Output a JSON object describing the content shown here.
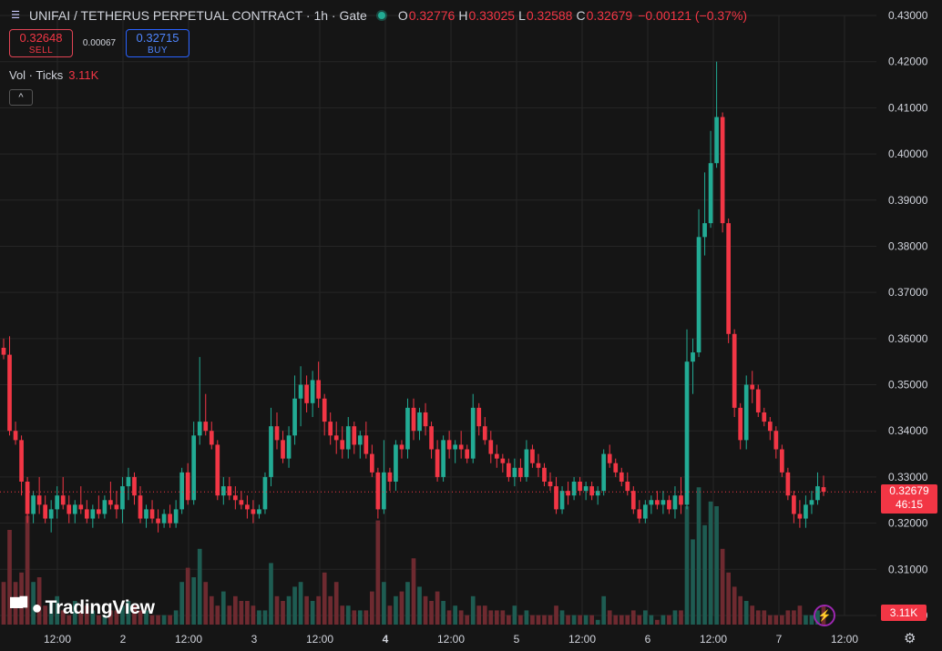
{
  "header": {
    "symbol_title": "UNIFAI / TETHERUS PERPETUAL CONTRACT · 1h · Gate",
    "o_label": "O",
    "o_value": "0.32776",
    "h_label": "H",
    "h_value": "0.33025",
    "l_label": "L",
    "l_value": "0.32588",
    "c_label": "C",
    "c_value": "0.32679",
    "change": "−0.00121 (−0.37%)",
    "status_color": "#22ab94"
  },
  "trade": {
    "sell_price": "0.32648",
    "sell_label": "SELL",
    "spread": "0.00067",
    "buy_price": "0.32715",
    "buy_label": "BUY"
  },
  "volume_legend": {
    "label": "Vol · Ticks",
    "value": "3.11K"
  },
  "collapse_label": "^",
  "brand": "TradingView",
  "last_price_tag": {
    "price": "0.32679",
    "countdown": "46:15"
  },
  "volume_tag": "3.11K",
  "colors": {
    "up": "#22ab94",
    "down": "#f23645",
    "background": "#151515",
    "grid": "#262626",
    "up_volume": "#1e5c52",
    "down_volume": "#6e2a30"
  },
  "chart_data": {
    "type": "candlestick",
    "y_ticks": [
      "0.43000",
      "0.42000",
      "0.41000",
      "0.40000",
      "0.39000",
      "0.38000",
      "0.37000",
      "0.36000",
      "0.35000",
      "0.34000",
      "0.33000",
      "0.32000",
      "0.31000",
      "0.30000"
    ],
    "ylim": [
      0.3,
      0.431
    ],
    "x_ticks": [
      "12:00",
      "2",
      "12:00",
      "3",
      "12:00",
      "4",
      "12:00",
      "5",
      "12:00",
      "6",
      "12:00",
      "7",
      "12:00"
    ],
    "x_ticks_bold": [
      false,
      false,
      false,
      false,
      false,
      true,
      false,
      false,
      false,
      false,
      false,
      false,
      false
    ],
    "last_price": 0.32679,
    "candles": [
      [
        0.358,
        0.36,
        0.3555,
        0.3565
      ],
      [
        0.3565,
        0.3605,
        0.339,
        0.34
      ],
      [
        0.34,
        0.342,
        0.337,
        0.338
      ],
      [
        0.338,
        0.339,
        0.326,
        0.329
      ],
      [
        0.329,
        0.33,
        0.32,
        0.322
      ],
      [
        0.322,
        0.327,
        0.32,
        0.326
      ],
      [
        0.326,
        0.33,
        0.322,
        0.324
      ],
      [
        0.324,
        0.326,
        0.32,
        0.321
      ],
      [
        0.321,
        0.325,
        0.318,
        0.323
      ],
      [
        0.323,
        0.328,
        0.321,
        0.326
      ],
      [
        0.326,
        0.33,
        0.323,
        0.324
      ],
      [
        0.324,
        0.326,
        0.32,
        0.322
      ],
      [
        0.322,
        0.325,
        0.32,
        0.324
      ],
      [
        0.324,
        0.328,
        0.322,
        0.323
      ],
      [
        0.323,
        0.325,
        0.32,
        0.321
      ],
      [
        0.321,
        0.324,
        0.319,
        0.323
      ],
      [
        0.323,
        0.326,
        0.321,
        0.322
      ],
      [
        0.322,
        0.326,
        0.321,
        0.325
      ],
      [
        0.325,
        0.329,
        0.323,
        0.324
      ],
      [
        0.324,
        0.327,
        0.321,
        0.323
      ],
      [
        0.323,
        0.33,
        0.32,
        0.328
      ],
      [
        0.328,
        0.332,
        0.325,
        0.33
      ],
      [
        0.33,
        0.331,
        0.324,
        0.326
      ],
      [
        0.326,
        0.328,
        0.32,
        0.321
      ],
      [
        0.321,
        0.324,
        0.319,
        0.323
      ],
      [
        0.323,
        0.325,
        0.32,
        0.321
      ],
      [
        0.321,
        0.323,
        0.318,
        0.32
      ],
      [
        0.32,
        0.323,
        0.319,
        0.322
      ],
      [
        0.322,
        0.324,
        0.319,
        0.32
      ],
      [
        0.32,
        0.325,
        0.319,
        0.323
      ],
      [
        0.323,
        0.332,
        0.322,
        0.331
      ],
      [
        0.331,
        0.333,
        0.324,
        0.325
      ],
      [
        0.325,
        0.342,
        0.324,
        0.339
      ],
      [
        0.339,
        0.356,
        0.337,
        0.342
      ],
      [
        0.342,
        0.348,
        0.339,
        0.34
      ],
      [
        0.34,
        0.342,
        0.336,
        0.337
      ],
      [
        0.337,
        0.338,
        0.325,
        0.326
      ],
      [
        0.326,
        0.33,
        0.324,
        0.328
      ],
      [
        0.328,
        0.33,
        0.325,
        0.326
      ],
      [
        0.326,
        0.328,
        0.323,
        0.325
      ],
      [
        0.325,
        0.327,
        0.323,
        0.324
      ],
      [
        0.324,
        0.326,
        0.321,
        0.323
      ],
      [
        0.323,
        0.325,
        0.32,
        0.322
      ],
      [
        0.322,
        0.324,
        0.321,
        0.323
      ],
      [
        0.323,
        0.331,
        0.322,
        0.33
      ],
      [
        0.33,
        0.345,
        0.328,
        0.341
      ],
      [
        0.341,
        0.344,
        0.336,
        0.338
      ],
      [
        0.338,
        0.34,
        0.333,
        0.334
      ],
      [
        0.334,
        0.341,
        0.332,
        0.339
      ],
      [
        0.339,
        0.352,
        0.337,
        0.347
      ],
      [
        0.347,
        0.354,
        0.341,
        0.35
      ],
      [
        0.35,
        0.352,
        0.344,
        0.346
      ],
      [
        0.346,
        0.353,
        0.343,
        0.351
      ],
      [
        0.351,
        0.355,
        0.345,
        0.347
      ],
      [
        0.347,
        0.348,
        0.339,
        0.342
      ],
      [
        0.342,
        0.344,
        0.337,
        0.339
      ],
      [
        0.339,
        0.342,
        0.335,
        0.338
      ],
      [
        0.338,
        0.341,
        0.334,
        0.336
      ],
      [
        0.336,
        0.343,
        0.334,
        0.341
      ],
      [
        0.341,
        0.342,
        0.335,
        0.337
      ],
      [
        0.337,
        0.34,
        0.334,
        0.339
      ],
      [
        0.339,
        0.342,
        0.334,
        0.335
      ],
      [
        0.335,
        0.337,
        0.33,
        0.331
      ],
      [
        0.331,
        0.332,
        0.321,
        0.323
      ],
      [
        0.323,
        0.338,
        0.322,
        0.331
      ],
      [
        0.331,
        0.332,
        0.327,
        0.329
      ],
      [
        0.329,
        0.338,
        0.327,
        0.337
      ],
      [
        0.337,
        0.338,
        0.334,
        0.336
      ],
      [
        0.336,
        0.347,
        0.334,
        0.345
      ],
      [
        0.345,
        0.347,
        0.338,
        0.34
      ],
      [
        0.34,
        0.345,
        0.338,
        0.344
      ],
      [
        0.344,
        0.346,
        0.339,
        0.341
      ],
      [
        0.341,
        0.342,
        0.334,
        0.336
      ],
      [
        0.336,
        0.338,
        0.329,
        0.33
      ],
      [
        0.33,
        0.339,
        0.329,
        0.338
      ],
      [
        0.338,
        0.34,
        0.334,
        0.336
      ],
      [
        0.336,
        0.338,
        0.333,
        0.337
      ],
      [
        0.337,
        0.34,
        0.334,
        0.336
      ],
      [
        0.336,
        0.337,
        0.333,
        0.334
      ],
      [
        0.334,
        0.348,
        0.333,
        0.345
      ],
      [
        0.345,
        0.346,
        0.339,
        0.341
      ],
      [
        0.341,
        0.343,
        0.337,
        0.338
      ],
      [
        0.338,
        0.34,
        0.333,
        0.335
      ],
      [
        0.335,
        0.337,
        0.332,
        0.334
      ],
      [
        0.334,
        0.335,
        0.331,
        0.333
      ],
      [
        0.333,
        0.334,
        0.329,
        0.33
      ],
      [
        0.33,
        0.334,
        0.328,
        0.332
      ],
      [
        0.332,
        0.334,
        0.329,
        0.33
      ],
      [
        0.33,
        0.338,
        0.329,
        0.336
      ],
      [
        0.336,
        0.337,
        0.332,
        0.333
      ],
      [
        0.333,
        0.335,
        0.33,
        0.332
      ],
      [
        0.332,
        0.333,
        0.328,
        0.329
      ],
      [
        0.329,
        0.331,
        0.327,
        0.328
      ],
      [
        0.328,
        0.33,
        0.322,
        0.323
      ],
      [
        0.323,
        0.328,
        0.322,
        0.327
      ],
      [
        0.327,
        0.329,
        0.324,
        0.326
      ],
      [
        0.326,
        0.33,
        0.325,
        0.329
      ],
      [
        0.329,
        0.33,
        0.326,
        0.327
      ],
      [
        0.327,
        0.329,
        0.325,
        0.328
      ],
      [
        0.328,
        0.329,
        0.325,
        0.326
      ],
      [
        0.326,
        0.328,
        0.324,
        0.327
      ],
      [
        0.327,
        0.336,
        0.326,
        0.335
      ],
      [
        0.335,
        0.337,
        0.332,
        0.333
      ],
      [
        0.333,
        0.334,
        0.33,
        0.331
      ],
      [
        0.331,
        0.332,
        0.328,
        0.329
      ],
      [
        0.329,
        0.331,
        0.326,
        0.327
      ],
      [
        0.327,
        0.328,
        0.322,
        0.323
      ],
      [
        0.323,
        0.325,
        0.32,
        0.321
      ],
      [
        0.321,
        0.325,
        0.32,
        0.324
      ],
      [
        0.324,
        0.326,
        0.322,
        0.325
      ],
      [
        0.325,
        0.327,
        0.323,
        0.324
      ],
      [
        0.324,
        0.327,
        0.322,
        0.325
      ],
      [
        0.325,
        0.326,
        0.322,
        0.323
      ],
      [
        0.323,
        0.328,
        0.321,
        0.326
      ],
      [
        0.326,
        0.33,
        0.322,
        0.324
      ],
      [
        0.324,
        0.362,
        0.323,
        0.355
      ],
      [
        0.355,
        0.36,
        0.348,
        0.357
      ],
      [
        0.357,
        0.388,
        0.356,
        0.382
      ],
      [
        0.382,
        0.396,
        0.378,
        0.385
      ],
      [
        0.385,
        0.405,
        0.384,
        0.398
      ],
      [
        0.398,
        0.42,
        0.397,
        0.408
      ],
      [
        0.408,
        0.409,
        0.383,
        0.385
      ],
      [
        0.385,
        0.386,
        0.359,
        0.361
      ],
      [
        0.361,
        0.362,
        0.343,
        0.345
      ],
      [
        0.345,
        0.346,
        0.336,
        0.338
      ],
      [
        0.338,
        0.352,
        0.336,
        0.35
      ],
      [
        0.35,
        0.353,
        0.346,
        0.349
      ],
      [
        0.349,
        0.35,
        0.343,
        0.344
      ],
      [
        0.344,
        0.345,
        0.341,
        0.342
      ],
      [
        0.342,
        0.343,
        0.338,
        0.34
      ],
      [
        0.34,
        0.341,
        0.334,
        0.336
      ],
      [
        0.336,
        0.337,
        0.33,
        0.331
      ],
      [
        0.331,
        0.332,
        0.325,
        0.326
      ],
      [
        0.326,
        0.327,
        0.32,
        0.322
      ],
      [
        0.322,
        0.325,
        0.319,
        0.321
      ],
      [
        0.321,
        0.326,
        0.319,
        0.324
      ],
      [
        0.324,
        0.327,
        0.322,
        0.325
      ],
      [
        0.325,
        0.331,
        0.324,
        0.328
      ],
      [
        0.3278,
        0.3303,
        0.3259,
        0.3268
      ]
    ],
    "volumes": [
      0.9,
      2.0,
      0.9,
      1.1,
      2.3,
      0.9,
      1.0,
      0.4,
      0.5,
      0.6,
      0.3,
      0.2,
      0.5,
      0.3,
      0.4,
      0.3,
      0.2,
      0.2,
      0.3,
      0.3,
      0.4,
      0.5,
      0.4,
      0.3,
      0.3,
      0.2,
      0.2,
      0.2,
      0.2,
      0.3,
      0.9,
      1.2,
      1.0,
      1.6,
      0.9,
      0.6,
      0.4,
      0.7,
      0.4,
      0.6,
      0.5,
      0.5,
      0.4,
      0.3,
      0.3,
      1.3,
      0.6,
      0.5,
      0.6,
      0.8,
      0.9,
      0.6,
      0.5,
      0.6,
      1.1,
      0.6,
      0.9,
      0.4,
      0.4,
      0.3,
      0.3,
      0.3,
      0.7,
      2.2,
      0.9,
      0.4,
      0.6,
      0.7,
      0.9,
      1.4,
      0.8,
      0.6,
      0.5,
      0.7,
      0.5,
      0.3,
      0.4,
      0.3,
      0.2,
      0.6,
      0.4,
      0.4,
      0.3,
      0.3,
      0.3,
      0.2,
      0.4,
      0.2,
      0.3,
      0.2,
      0.2,
      0.2,
      0.2,
      0.4,
      0.3,
      0.2,
      0.2,
      0.2,
      0.2,
      0.2,
      0.1,
      0.6,
      0.3,
      0.2,
      0.2,
      0.2,
      0.3,
      0.2,
      0.3,
      0.2,
      0.1,
      0.2,
      0.2,
      0.3,
      0.3,
      2.5,
      1.8,
      2.9,
      2.1,
      2.6,
      2.5,
      1.6,
      1.1,
      0.8,
      0.6,
      0.5,
      0.4,
      0.3,
      0.3,
      0.2,
      0.2,
      0.2,
      0.3,
      0.3,
      0.4,
      0.2,
      0.2,
      0.3,
      0.4,
      0.3
    ]
  }
}
